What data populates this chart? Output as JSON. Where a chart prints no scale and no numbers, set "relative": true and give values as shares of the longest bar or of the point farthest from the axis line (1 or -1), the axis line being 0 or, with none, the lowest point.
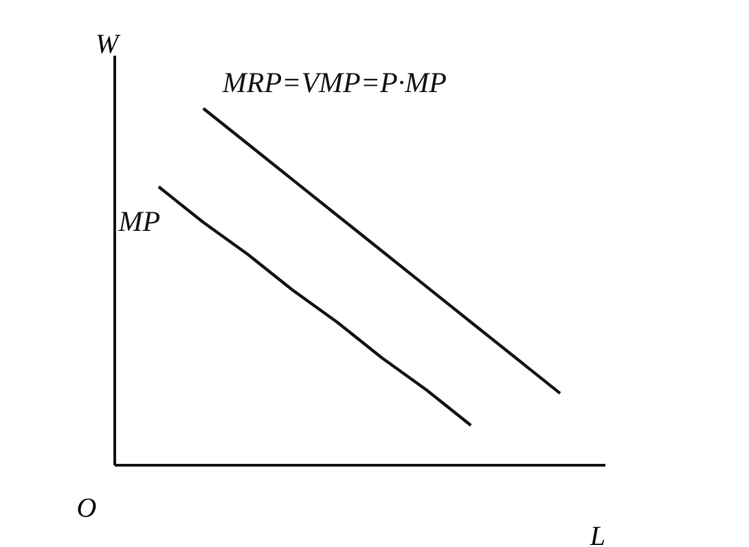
{
  "chart_data": {
    "type": "line",
    "relative": true,
    "xlabel": "L",
    "ylabel": "W",
    "marker": "none",
    "line_style": "solid",
    "annotations": [
      "O"
    ],
    "categories": [
      null,
      null,
      null,
      null,
      null,
      null,
      null,
      null,
      null,
      null
    ],
    "series": [
      {
        "name": "MP",
        "color": "#111111",
        "values": [
          0.78,
          0.68,
          0.59,
          0.49,
          0.4,
          0.3,
          0.21,
          0.11,
          null,
          null
        ]
      },
      {
        "name": "MRP=VMP=P·MP",
        "color": "#111111",
        "values": [
          null,
          1.0,
          0.9,
          0.8,
          0.7,
          0.6,
          0.5,
          0.4,
          0.3,
          0.2
        ]
      }
    ]
  }
}
